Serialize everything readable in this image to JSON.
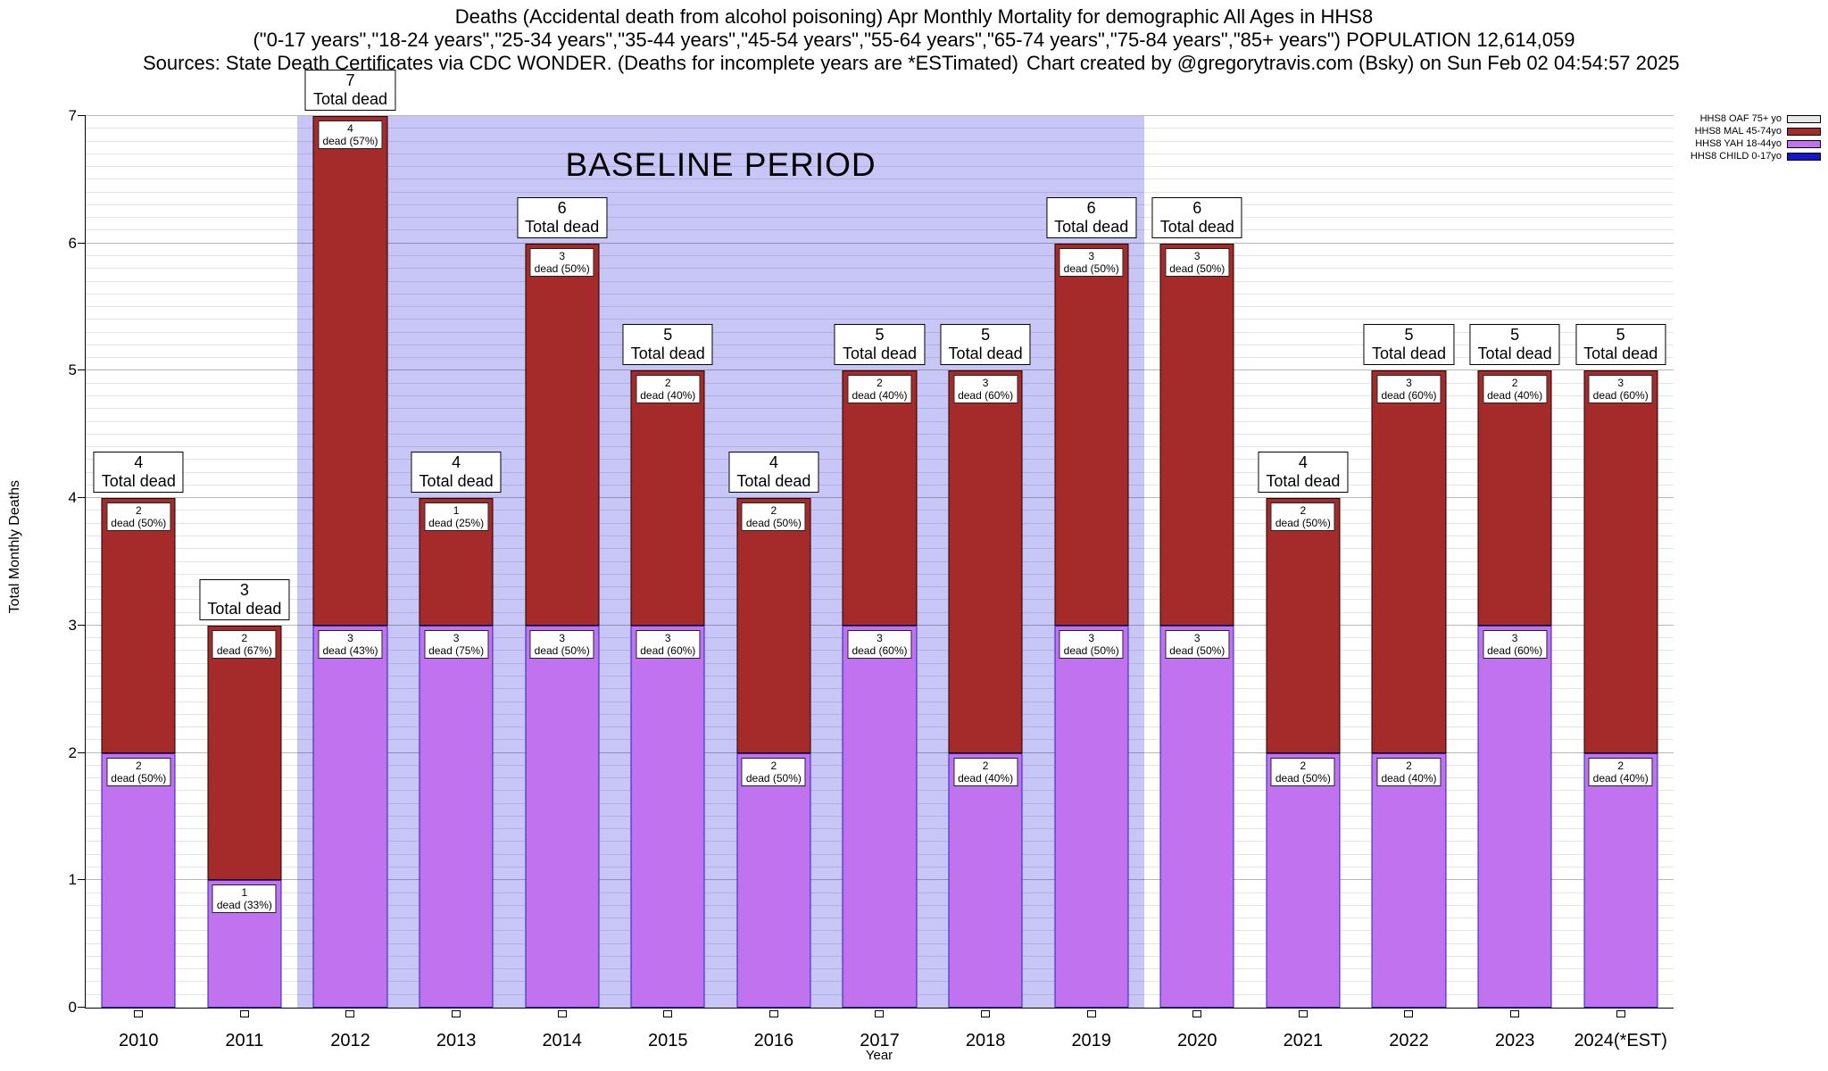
{
  "header": {
    "title_line1": "Deaths (Accidental death from alcohol poisoning) Apr Monthly Mortality for demographic All Ages in HHS8",
    "title_line2": "(\"0-17 years\",\"18-24 years\",\"25-34 years\",\"35-44 years\",\"45-54 years\",\"55-64 years\",\"65-74 years\",\"75-84 years\",\"85+ years\") POPULATION 12,614,059",
    "sources": "Sources: State Death Certificates via CDC WONDER. (Deaths for incomplete years are *ESTimated)",
    "credit": "Chart created by @gregorytravis.com (Bsky) on Sun Feb 02 04:54:57 2025"
  },
  "axes": {
    "ylabel": "Total Monthly Deaths",
    "xlabel": "Year",
    "ymax": 7,
    "yticks": [
      0,
      1,
      2,
      3,
      4,
      5,
      6,
      7
    ]
  },
  "colors": {
    "yah": "#c173ef",
    "mal": "#a52a2a",
    "child": "#1414cc",
    "oaf": "#e8e8e8",
    "baseline": "#c8c6f6"
  },
  "baseline": {
    "label": "BASELINE PERIOD",
    "start_year": "2012",
    "end_year": "2019",
    "color": "#c8c6f6"
  },
  "labels": {
    "total_dead": "Total dead"
  },
  "legend": [
    {
      "label": "HHS8 OAF 75+ yo",
      "color": "#e8e8e8"
    },
    {
      "label": "HHS8 MAL 45-74yo",
      "color": "#a52a2a"
    },
    {
      "label": "HHS8 YAH 18-44yo",
      "color": "#c173ef"
    },
    {
      "label": "HHS8 CHILD 0-17yo",
      "color": "#1414cc"
    }
  ],
  "chart_data": {
    "type": "bar",
    "stacked": true,
    "title": "Deaths (Accidental death from alcohol poisoning) Apr Monthly Mortality for demographic All Ages in HHS8",
    "xlabel": "Year",
    "ylabel": "Total Monthly Deaths",
    "ylim": [
      0,
      7
    ],
    "grid": true,
    "legend_position": "top-right",
    "categories": [
      "2010",
      "2011",
      "2012",
      "2013",
      "2014",
      "2015",
      "2016",
      "2017",
      "2018",
      "2019",
      "2020",
      "2021",
      "2022",
      "2023",
      "2024(*EST)"
    ],
    "series": [
      {
        "name": "HHS8 CHILD 0-17yo",
        "color": "#1414cc",
        "values": [
          0,
          0,
          0,
          0,
          0,
          0,
          0,
          0,
          0,
          0,
          0,
          0,
          0,
          0,
          0
        ]
      },
      {
        "name": "HHS8 YAH 18-44yo",
        "color": "#c173ef",
        "values": [
          2,
          1,
          3,
          3,
          3,
          3,
          2,
          3,
          2,
          3,
          3,
          2,
          2,
          3,
          2
        ]
      },
      {
        "name": "HHS8 MAL 45-74yo",
        "color": "#a52a2a",
        "values": [
          2,
          2,
          4,
          1,
          3,
          2,
          2,
          2,
          3,
          3,
          3,
          2,
          3,
          2,
          3
        ]
      },
      {
        "name": "HHS8 OAF 75+ yo",
        "color": "#e8e8e8",
        "values": [
          0,
          0,
          0,
          0,
          0,
          0,
          0,
          0,
          0,
          0,
          0,
          0,
          0,
          0,
          0
        ]
      }
    ],
    "totals": [
      4,
      3,
      7,
      4,
      6,
      5,
      4,
      5,
      5,
      6,
      6,
      4,
      5,
      5,
      5
    ],
    "annotations": {
      "baseline_label": "BASELINE PERIOD",
      "baseline_span": [
        "2012",
        "2019"
      ]
    }
  },
  "bars": [
    {
      "year": "2010",
      "total": "4",
      "yah": {
        "value": 2,
        "count": "2",
        "label": "dead (50%)"
      },
      "mal": {
        "value": 2,
        "count": "2",
        "label": "dead (50%)"
      }
    },
    {
      "year": "2011",
      "total": "3",
      "yah": {
        "value": 1,
        "count": "1",
        "label": "dead (33%)"
      },
      "mal": {
        "value": 2,
        "count": "2",
        "label": "dead (67%)"
      }
    },
    {
      "year": "2012",
      "total": "7",
      "yah": {
        "value": 3,
        "count": "3",
        "label": "dead (43%)"
      },
      "mal": {
        "value": 4,
        "count": "4",
        "label": "dead (57%)"
      }
    },
    {
      "year": "2013",
      "total": "4",
      "yah": {
        "value": 3,
        "count": "3",
        "label": "dead (75%)"
      },
      "mal": {
        "value": 1,
        "count": "1",
        "label": "dead (25%)"
      }
    },
    {
      "year": "2014",
      "total": "6",
      "yah": {
        "value": 3,
        "count": "3",
        "label": "dead (50%)"
      },
      "mal": {
        "value": 3,
        "count": "3",
        "label": "dead (50%)"
      }
    },
    {
      "year": "2015",
      "total": "5",
      "yah": {
        "value": 3,
        "count": "3",
        "label": "dead (60%)"
      },
      "mal": {
        "value": 2,
        "count": "2",
        "label": "dead (40%)"
      }
    },
    {
      "year": "2016",
      "total": "4",
      "yah": {
        "value": 2,
        "count": "2",
        "label": "dead (50%)"
      },
      "mal": {
        "value": 2,
        "count": "2",
        "label": "dead (50%)"
      }
    },
    {
      "year": "2017",
      "total": "5",
      "yah": {
        "value": 3,
        "count": "3",
        "label": "dead (60%)"
      },
      "mal": {
        "value": 2,
        "count": "2",
        "label": "dead (40%)"
      }
    },
    {
      "year": "2018",
      "total": "5",
      "yah": {
        "value": 2,
        "count": "2",
        "label": "dead (40%)"
      },
      "mal": {
        "value": 3,
        "count": "3",
        "label": "dead (60%)"
      }
    },
    {
      "year": "2019",
      "total": "6",
      "yah": {
        "value": 3,
        "count": "3",
        "label": "dead (50%)"
      },
      "mal": {
        "value": 3,
        "count": "3",
        "label": "dead (50%)"
      }
    },
    {
      "year": "2020",
      "total": "6",
      "yah": {
        "value": 3,
        "count": "3",
        "label": "dead (50%)"
      },
      "mal": {
        "value": 3,
        "count": "3",
        "label": "dead (50%)"
      }
    },
    {
      "year": "2021",
      "total": "4",
      "yah": {
        "value": 2,
        "count": "2",
        "label": "dead (50%)"
      },
      "mal": {
        "value": 2,
        "count": "2",
        "label": "dead (50%)"
      }
    },
    {
      "year": "2022",
      "total": "5",
      "yah": {
        "value": 2,
        "count": "2",
        "label": "dead (40%)"
      },
      "mal": {
        "value": 3,
        "count": "3",
        "label": "dead (60%)"
      }
    },
    {
      "year": "2023",
      "total": "5",
      "yah": {
        "value": 3,
        "count": "3",
        "label": "dead (60%)"
      },
      "mal": {
        "value": 2,
        "count": "2",
        "label": "dead (40%)"
      }
    },
    {
      "year": "2024(*EST)",
      "total": "5",
      "yah": {
        "value": 2,
        "count": "2",
        "label": "dead (40%)"
      },
      "mal": {
        "value": 3,
        "count": "3",
        "label": "dead (60%)"
      }
    }
  ]
}
